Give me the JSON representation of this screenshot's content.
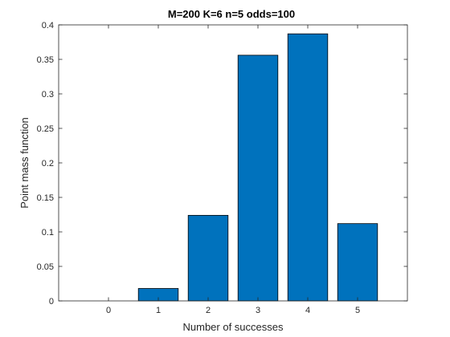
{
  "chart_data": {
    "type": "bar",
    "title": "M=200 K=6 n=5 odds=100",
    "xlabel": "Number of successes",
    "ylabel": "Point mass function",
    "categories": [
      "0",
      "1",
      "2",
      "3",
      "4",
      "5"
    ],
    "x": [
      0,
      1,
      2,
      3,
      4,
      5
    ],
    "values": [
      0.0,
      0.018,
      0.124,
      0.356,
      0.387,
      0.112
    ],
    "xlim": [
      -1,
      6
    ],
    "ylim": [
      0,
      0.4
    ],
    "yticks": [
      0,
      0.05,
      0.1,
      0.15,
      0.2,
      0.25,
      0.3,
      0.35,
      0.4
    ],
    "ytick_labels": [
      "0",
      "0.05",
      "0.1",
      "0.15",
      "0.2",
      "0.25",
      "0.3",
      "0.35",
      "0.4"
    ],
    "grid": false,
    "bar_color": "#0072BD",
    "bar_edge_color": "#000000"
  }
}
